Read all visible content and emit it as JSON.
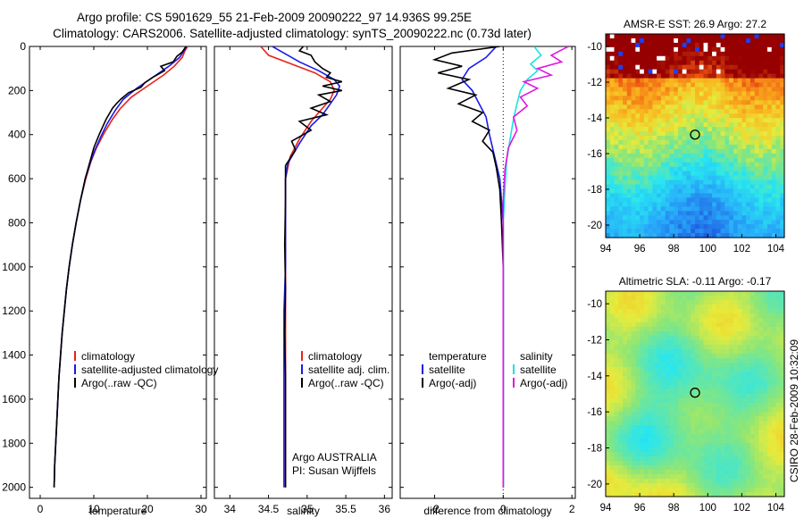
{
  "title": {
    "line1": "Argo profile: CS 5901629_55 21-Feb-2009 20090222_97 14.936S 99.25E",
    "line2": "Climatology: CARS2006. Satellite-adjusted climatology: synTS_20090222.nc (0.73d later)"
  },
  "side_text": "CSIRO 28-Feb-2009 10:32:09",
  "colors": {
    "climatology": "#e8231a",
    "satellite": "#1a1ae8",
    "argo": "#000000",
    "satellite_salinity": "#18e3e8",
    "argo_adj_salinity": "#e018e0"
  },
  "chart_data": [
    {
      "type": "line",
      "panel": "temperature",
      "xlabel": "temperature",
      "xlim": [
        -2,
        31
      ],
      "ylim": [
        2050,
        0
      ],
      "xticks": [
        0,
        10,
        20,
        30
      ],
      "yticks": [
        0,
        200,
        400,
        600,
        800,
        1000,
        1200,
        1400,
        1600,
        1800,
        2000
      ],
      "legend": [
        "climatology",
        "satellite-adjusted climatology",
        "Argo(..raw -QC)"
      ],
      "series": [
        {
          "name": "climatology",
          "color": "#e8231a",
          "points": [
            [
              27.5,
              0
            ],
            [
              27,
              20
            ],
            [
              26.5,
              50
            ],
            [
              25,
              90
            ],
            [
              23,
              130
            ],
            [
              20,
              180
            ],
            [
              17,
              230
            ],
            [
              15,
              280
            ],
            [
              13.5,
              330
            ],
            [
              12,
              390
            ],
            [
              10.5,
              460
            ],
            [
              9.5,
              520
            ],
            [
              8.5,
              600
            ],
            [
              7.5,
              700
            ],
            [
              6.7,
              800
            ],
            [
              6,
              900
            ],
            [
              5.4,
              1000
            ],
            [
              4.9,
              1100
            ],
            [
              4.5,
              1200
            ],
            [
              4.1,
              1300
            ],
            [
              3.8,
              1400
            ],
            [
              3.5,
              1500
            ],
            [
              3.3,
              1600
            ],
            [
              3.1,
              1700
            ],
            [
              2.9,
              1800
            ],
            [
              2.7,
              1900
            ],
            [
              2.6,
              2000
            ]
          ]
        },
        {
          "name": "satellite-adjusted climatology",
          "color": "#1a1ae8",
          "points": [
            [
              27.3,
              0
            ],
            [
              26.8,
              20
            ],
            [
              26,
              50
            ],
            [
              24,
              90
            ],
            [
              21,
              140
            ],
            [
              18,
              190
            ],
            [
              15.5,
              240
            ],
            [
              14,
              290
            ],
            [
              12.5,
              350
            ],
            [
              11.3,
              410
            ],
            [
              10.2,
              470
            ],
            [
              9.3,
              530
            ],
            [
              8.4,
              600
            ],
            [
              7.5,
              700
            ],
            [
              6.7,
              800
            ],
            [
              6,
              900
            ],
            [
              5.4,
              1000
            ],
            [
              4.9,
              1100
            ],
            [
              4.5,
              1200
            ],
            [
              4.1,
              1300
            ],
            [
              3.8,
              1400
            ],
            [
              3.5,
              1500
            ],
            [
              3.3,
              1600
            ],
            [
              3.1,
              1700
            ],
            [
              2.9,
              1800
            ],
            [
              2.7,
              1900
            ],
            [
              2.6,
              2000
            ]
          ]
        },
        {
          "name": "Argo(..raw -QC)",
          "color": "#000000",
          "points": [
            [
              27.2,
              0
            ],
            [
              26.5,
              25
            ],
            [
              25.5,
              45
            ],
            [
              24.8,
              70
            ],
            [
              22.5,
              90
            ],
            [
              23.2,
              110
            ],
            [
              21,
              140
            ],
            [
              19.5,
              165
            ],
            [
              18.8,
              185
            ],
            [
              16.5,
              210
            ],
            [
              15,
              240
            ],
            [
              14.2,
              260
            ],
            [
              13.5,
              280
            ],
            [
              12.3,
              330
            ],
            [
              11,
              400
            ],
            [
              10,
              460
            ],
            [
              9.2,
              530
            ],
            [
              8.4,
              600
            ],
            [
              7.5,
              700
            ],
            [
              6.7,
              800
            ],
            [
              6,
              900
            ],
            [
              5.4,
              1000
            ],
            [
              4.9,
              1100
            ],
            [
              4.5,
              1200
            ],
            [
              4.1,
              1300
            ],
            [
              3.8,
              1400
            ],
            [
              3.5,
              1500
            ],
            [
              3.3,
              1600
            ],
            [
              3.1,
              1700
            ],
            [
              2.9,
              1800
            ],
            [
              2.7,
              1900
            ],
            [
              2.6,
              2000
            ]
          ]
        }
      ]
    },
    {
      "type": "line",
      "panel": "salinity",
      "xlabel": "salinity",
      "xlim": [
        33.8,
        36.1
      ],
      "ylim": [
        2050,
        0
      ],
      "xticks": [
        34,
        34.5,
        35,
        35.5,
        36
      ],
      "legend": [
        "climatology",
        "satellite adj. clim.",
        "Argo(..raw -QC)"
      ],
      "annotation": [
        "Argo AUSTRALIA",
        "PI: Susan Wijffels"
      ],
      "series": [
        {
          "name": "climatology",
          "color": "#e8231a",
          "points": [
            [
              34.4,
              0
            ],
            [
              34.5,
              40
            ],
            [
              34.8,
              80
            ],
            [
              35.1,
              120
            ],
            [
              35.3,
              160
            ],
            [
              35.35,
              200
            ],
            [
              35.3,
              240
            ],
            [
              35.2,
              280
            ],
            [
              35.05,
              340
            ],
            [
              34.9,
              420
            ],
            [
              34.78,
              500
            ],
            [
              34.72,
              600
            ],
            [
              34.72,
              800
            ],
            [
              34.72,
              1000
            ],
            [
              34.72,
              1200
            ],
            [
              34.72,
              1400
            ],
            [
              34.72,
              1600
            ],
            [
              34.72,
              1800
            ],
            [
              34.72,
              2000
            ]
          ]
        },
        {
          "name": "satellite adj. clim.",
          "color": "#1a1ae8",
          "points": [
            [
              34.55,
              0
            ],
            [
              34.7,
              30
            ],
            [
              34.9,
              70
            ],
            [
              35.15,
              110
            ],
            [
              35.35,
              150
            ],
            [
              35.42,
              180
            ],
            [
              35.38,
              220
            ],
            [
              35.3,
              260
            ],
            [
              35.2,
              310
            ],
            [
              35.05,
              360
            ],
            [
              34.9,
              440
            ],
            [
              34.75,
              530
            ],
            [
              34.72,
              600
            ],
            [
              34.72,
              800
            ],
            [
              34.72,
              1000
            ],
            [
              34.7,
              1200
            ],
            [
              34.7,
              1400
            ],
            [
              34.7,
              1600
            ],
            [
              34.7,
              1800
            ],
            [
              34.7,
              2000
            ]
          ]
        },
        {
          "name": "Argo(..raw -QC)",
          "color": "#000000",
          "points": [
            [
              34.95,
              0
            ],
            [
              34.9,
              20
            ],
            [
              35.05,
              40
            ],
            [
              35.1,
              70
            ],
            [
              35.2,
              100
            ],
            [
              35.3,
              120
            ],
            [
              35.25,
              140
            ],
            [
              35.45,
              160
            ],
            [
              35.2,
              180
            ],
            [
              35.45,
              200
            ],
            [
              35.15,
              220
            ],
            [
              35.3,
              250
            ],
            [
              35.05,
              280
            ],
            [
              35.25,
              310
            ],
            [
              34.9,
              340
            ],
            [
              35.05,
              380
            ],
            [
              34.8,
              430
            ],
            [
              34.85,
              470
            ],
            [
              34.72,
              540
            ],
            [
              34.72,
              700
            ],
            [
              34.71,
              900
            ],
            [
              34.72,
              1100
            ],
            [
              34.71,
              1300
            ],
            [
              34.72,
              1500
            ],
            [
              34.72,
              1700
            ],
            [
              34.72,
              1900
            ],
            [
              34.72,
              2000
            ]
          ]
        }
      ]
    },
    {
      "type": "line",
      "panel": "difference",
      "xlabel": "difference from climatology",
      "xlim": [
        -3,
        2.1
      ],
      "ylim": [
        2050,
        0
      ],
      "xticks": [
        -2,
        0,
        2
      ],
      "zero_line": true,
      "legend_left": [
        "temperature",
        "satellite",
        "Argo(-adj)"
      ],
      "legend_right": [
        "salinity",
        "satellite",
        "Argo(-adj)"
      ],
      "series": [
        {
          "name": "temperature satellite",
          "color": "#1a1ae8",
          "points": [
            [
              -0.2,
              0
            ],
            [
              -0.5,
              50
            ],
            [
              -1,
              100
            ],
            [
              -1.2,
              150
            ],
            [
              -0.9,
              200
            ],
            [
              -0.7,
              260
            ],
            [
              -0.5,
              320
            ],
            [
              -0.4,
              400
            ],
            [
              -0.25,
              500
            ],
            [
              -0.1,
              600
            ],
            [
              -0.05,
              700
            ],
            [
              0,
              800
            ],
            [
              0,
              1000
            ],
            [
              0,
              1200
            ],
            [
              0,
              1400
            ],
            [
              0,
              1600
            ],
            [
              0,
              1800
            ],
            [
              0,
              2000
            ]
          ]
        },
        {
          "name": "temperature Argo(-adj)",
          "color": "#000000",
          "points": [
            [
              -0.1,
              0
            ],
            [
              -1.5,
              30
            ],
            [
              -2,
              60
            ],
            [
              -1.2,
              90
            ],
            [
              -1.9,
              120
            ],
            [
              -1.0,
              150
            ],
            [
              -1.6,
              190
            ],
            [
              -0.8,
              220
            ],
            [
              -1.3,
              260
            ],
            [
              -0.6,
              300
            ],
            [
              -0.9,
              340
            ],
            [
              -0.4,
              380
            ],
            [
              -0.6,
              430
            ],
            [
              -0.3,
              480
            ],
            [
              -0.2,
              550
            ],
            [
              -0.1,
              650
            ],
            [
              -0.05,
              800
            ],
            [
              0,
              1000
            ],
            [
              0,
              1200
            ],
            [
              0,
              1400
            ],
            [
              0,
              1600
            ],
            [
              0,
              1800
            ],
            [
              0,
              2000
            ]
          ]
        },
        {
          "name": "salinity satellite",
          "color": "#18e3e8",
          "points": [
            [
              0.9,
              0
            ],
            [
              1.1,
              40
            ],
            [
              0.8,
              80
            ],
            [
              1.0,
              110
            ],
            [
              0.7,
              150
            ],
            [
              0.5,
              200
            ],
            [
              0.4,
              260
            ],
            [
              0.3,
              330
            ],
            [
              0.2,
              420
            ],
            [
              0.1,
              520
            ],
            [
              0.05,
              650
            ],
            [
              0,
              800
            ],
            [
              0,
              1000
            ],
            [
              0,
              1200
            ],
            [
              0,
              1400
            ],
            [
              0,
              1600
            ],
            [
              0,
              1800
            ],
            [
              0,
              2000
            ]
          ]
        },
        {
          "name": "salinity Argo(-adj)",
          "color": "#e018e0",
          "points": [
            [
              1.9,
              0
            ],
            [
              1.4,
              40
            ],
            [
              1.7,
              70
            ],
            [
              1.0,
              100
            ],
            [
              1.4,
              130
            ],
            [
              0.6,
              160
            ],
            [
              1.0,
              190
            ],
            [
              0.5,
              230
            ],
            [
              0.7,
              270
            ],
            [
              0.3,
              320
            ],
            [
              0.4,
              380
            ],
            [
              0.15,
              460
            ],
            [
              0.05,
              560
            ],
            [
              0,
              700
            ],
            [
              0,
              900
            ],
            [
              0,
              1100
            ],
            [
              0,
              1300
            ],
            [
              0,
              1500
            ],
            [
              0,
              1700
            ],
            [
              0,
              1900
            ],
            [
              0,
              2000
            ]
          ]
        }
      ]
    },
    {
      "type": "heatmap",
      "panel": "sst-map",
      "title": "AMSR-E SST: 26.9 Argo: 27.2",
      "xlim": [
        94,
        104.5
      ],
      "ylim": [
        -20.7,
        -9.3
      ],
      "xticks": [
        94,
        96,
        98,
        100,
        102,
        104
      ],
      "yticks": [
        -10,
        -12,
        -14,
        -16,
        -18,
        -20
      ],
      "marker": {
        "lon": 99.25,
        "lat": -14.936
      }
    },
    {
      "type": "heatmap",
      "panel": "sla-map",
      "title": "Altimetric SLA: -0.11 Argo: -0.17",
      "xlim": [
        94,
        104.5
      ],
      "ylim": [
        -20.7,
        -9.3
      ],
      "xticks": [
        94,
        96,
        98,
        100,
        102,
        104
      ],
      "yticks": [
        -10,
        -12,
        -14,
        -16,
        -18,
        -20
      ],
      "marker": {
        "lon": 99.25,
        "lat": -14.936
      }
    }
  ]
}
